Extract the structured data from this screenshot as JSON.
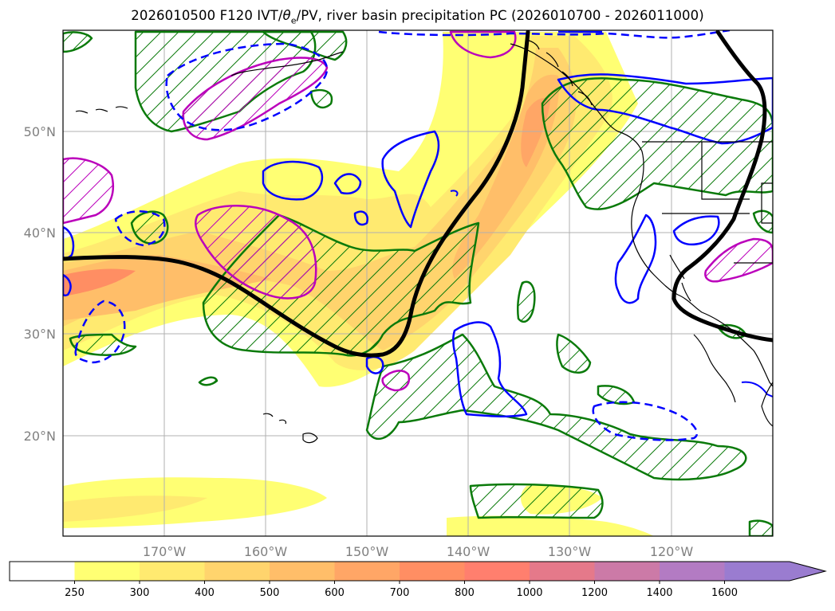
{
  "title": {
    "prefix": "2026010500 F120 IVT/",
    "theta": "θ",
    "theta_sub": "e",
    "suffix": "/PV, river basin precipitation PC (2026010700 - 2026011000)"
  },
  "map": {
    "lon_labels": [
      "170°W",
      "160°W",
      "150°W",
      "140°W",
      "130°W",
      "120°W"
    ],
    "lat_labels": [
      "50°N",
      "40°N",
      "30°N",
      "20°N"
    ]
  },
  "colorbar": {
    "ticks": [
      "250",
      "300",
      "400",
      "500",
      "600",
      "700",
      "800",
      "1000",
      "1200",
      "1400",
      "1600"
    ],
    "colors": [
      "#ffffff",
      "#ffff73",
      "#ffea70",
      "#ffd46d",
      "#ffbe69",
      "#ffa666",
      "#ff8e63",
      "#ff7f6e",
      "#e5798a",
      "#cc7aa7",
      "#b37bc3",
      "#9a7cd0"
    ],
    "extend": "max"
  },
  "legend_colors": {
    "ivt_fill": "#ffd86a",
    "pv_line": "#000000",
    "precip_pc_pos": "#0a7a0a",
    "theta_pos": "#0000ff",
    "theta_neg": "#bb00bb",
    "coast": "#000000"
  }
}
